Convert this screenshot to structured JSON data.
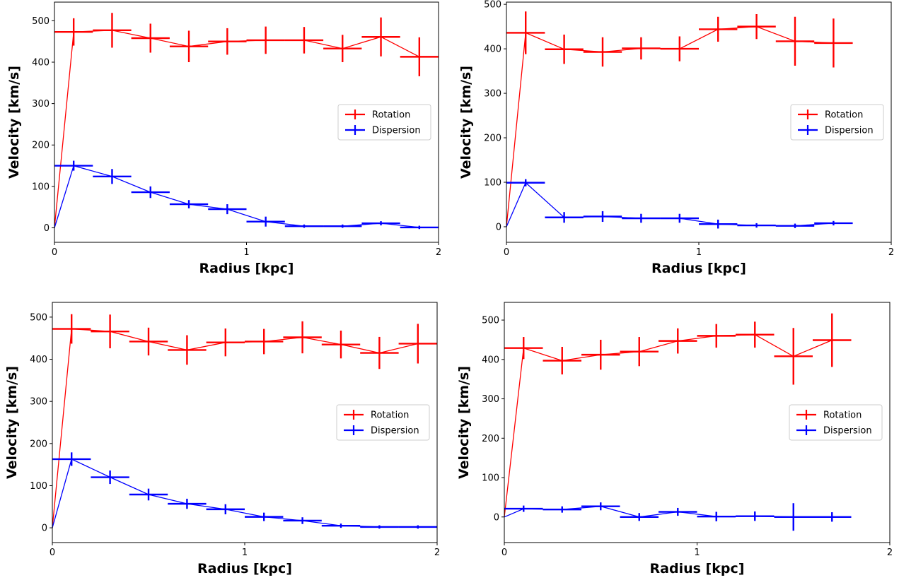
{
  "chart_data": [
    {
      "type": "line",
      "xlabel": "Radius [kpc]",
      "ylabel": "Velocity [km/s]",
      "xlim": [
        0,
        2
      ],
      "ylim": [
        -35,
        545
      ],
      "xticks": [
        0,
        1,
        2
      ],
      "yticks": [
        0,
        100,
        200,
        300,
        400,
        500
      ],
      "grid": false,
      "legend_position": "center-right",
      "series": [
        {
          "name": "Rotation",
          "color": "#ff0000",
          "x": [
            0,
            0.1,
            0.3,
            0.5,
            0.7,
            0.9,
            1.1,
            1.3,
            1.5,
            1.7,
            1.9
          ],
          "y": [
            0,
            473,
            477,
            458,
            438,
            450,
            453,
            453,
            433,
            461,
            413
          ],
          "xerr": [
            0,
            0.1,
            0.1,
            0.1,
            0.1,
            0.1,
            0.1,
            0.1,
            0.1,
            0.1,
            0.1
          ],
          "yerr": [
            0,
            33,
            42,
            35,
            38,
            32,
            33,
            32,
            33,
            47,
            47
          ]
        },
        {
          "name": "Dispersion",
          "color": "#0000ff",
          "x": [
            0,
            0.1,
            0.3,
            0.5,
            0.7,
            0.9,
            1.1,
            1.3,
            1.5,
            1.7,
            1.9
          ],
          "y": [
            0,
            150,
            124,
            86,
            57,
            45,
            15,
            4,
            4,
            11,
            1
          ],
          "xerr": [
            0,
            0.1,
            0.1,
            0.1,
            0.1,
            0.1,
            0.1,
            0.1,
            0.1,
            0.1,
            0.1
          ],
          "yerr": [
            0,
            12,
            18,
            14,
            10,
            12,
            12,
            4,
            4,
            5,
            4
          ]
        }
      ]
    },
    {
      "type": "line",
      "xlabel": "Radius [kpc]",
      "ylabel": "Velocity [km/s]",
      "xlim": [
        0,
        2
      ],
      "ylim": [
        -35,
        505
      ],
      "xticks": [
        0,
        1,
        2
      ],
      "yticks": [
        0,
        100,
        200,
        300,
        400,
        500
      ],
      "grid": false,
      "legend_position": "center-right",
      "series": [
        {
          "name": "Rotation",
          "color": "#ff0000",
          "x": [
            0,
            0.1,
            0.3,
            0.5,
            0.7,
            0.9,
            1.1,
            1.3,
            1.5,
            1.7
          ],
          "y": [
            0,
            436,
            399,
            393,
            401,
            400,
            444,
            450,
            417,
            413
          ],
          "xerr": [
            0,
            0.1,
            0.1,
            0.1,
            0.1,
            0.1,
            0.1,
            0.1,
            0.1,
            0.1
          ],
          "yerr": [
            0,
            48,
            33,
            33,
            25,
            28,
            28,
            28,
            55,
            55
          ]
        },
        {
          "name": "Dispersion",
          "color": "#0000ff",
          "x": [
            0,
            0.1,
            0.3,
            0.5,
            0.7,
            0.9,
            1.1,
            1.3,
            1.5,
            1.7
          ],
          "y": [
            0,
            99,
            21,
            23,
            19,
            19,
            6,
            3,
            2,
            8
          ],
          "xerr": [
            0,
            0.1,
            0.1,
            0.1,
            0.1,
            0.1,
            0.1,
            0.1,
            0.1,
            0.1
          ],
          "yerr": [
            0,
            8,
            12,
            12,
            10,
            10,
            10,
            5,
            5,
            5
          ]
        }
      ]
    },
    {
      "type": "line",
      "xlabel": "Radius [kpc]",
      "ylabel": "Velocity [km/s]",
      "xlim": [
        0,
        2
      ],
      "ylim": [
        -35,
        535
      ],
      "xticks": [
        0,
        1,
        2
      ],
      "yticks": [
        0,
        100,
        200,
        300,
        400,
        500
      ],
      "grid": false,
      "legend_position": "center-right",
      "series": [
        {
          "name": "Rotation",
          "color": "#ff0000",
          "x": [
            0,
            0.1,
            0.3,
            0.5,
            0.7,
            0.9,
            1.1,
            1.3,
            1.5,
            1.7,
            1.9
          ],
          "y": [
            0,
            472,
            466,
            442,
            422,
            440,
            442,
            452,
            435,
            415,
            437
          ],
          "xerr": [
            0,
            0.1,
            0.1,
            0.1,
            0.1,
            0.1,
            0.1,
            0.1,
            0.1,
            0.1,
            0.1
          ],
          "yerr": [
            0,
            35,
            40,
            33,
            35,
            33,
            30,
            38,
            33,
            38,
            47
          ]
        },
        {
          "name": "Dispersion",
          "color": "#0000ff",
          "x": [
            0,
            0.1,
            0.3,
            0.5,
            0.7,
            0.9,
            1.1,
            1.3,
            1.5,
            1.7,
            1.9
          ],
          "y": [
            0,
            163,
            120,
            79,
            57,
            44,
            26,
            17,
            5,
            2,
            2
          ],
          "xerr": [
            0,
            0.1,
            0.1,
            0.1,
            0.1,
            0.1,
            0.1,
            0.1,
            0.1,
            0.1,
            0.1
          ],
          "yerr": [
            0,
            16,
            16,
            14,
            12,
            12,
            10,
            8,
            5,
            4,
            4
          ]
        }
      ]
    },
    {
      "type": "line",
      "xlabel": "Radius [kpc]",
      "ylabel": "Velocity [km/s]",
      "xlim": [
        0,
        2
      ],
      "ylim": [
        -65,
        545
      ],
      "xticks": [
        0,
        1,
        2
      ],
      "yticks": [
        0,
        100,
        200,
        300,
        400,
        500
      ],
      "grid": false,
      "legend_position": "center-right",
      "series": [
        {
          "name": "Rotation",
          "color": "#ff0000",
          "x": [
            0,
            0.1,
            0.3,
            0.5,
            0.7,
            0.9,
            1.1,
            1.3,
            1.5,
            1.7
          ],
          "y": [
            0,
            429,
            397,
            412,
            420,
            447,
            460,
            463,
            408,
            449
          ],
          "xerr": [
            0,
            0.1,
            0.1,
            0.1,
            0.1,
            0.1,
            0.1,
            0.1,
            0.1,
            0.1
          ],
          "yerr": [
            0,
            28,
            35,
            38,
            37,
            32,
            30,
            33,
            72,
            68
          ]
        },
        {
          "name": "Dispersion",
          "color": "#0000ff",
          "x": [
            0,
            0.1,
            0.3,
            0.5,
            0.7,
            0.9,
            1.1,
            1.3,
            1.5,
            1.7
          ],
          "y": [
            0,
            21,
            19,
            27,
            0,
            13,
            1,
            2,
            0,
            0
          ],
          "xerr": [
            0,
            0.1,
            0.1,
            0.1,
            0.1,
            0.1,
            0.1,
            0.1,
            0.1,
            0.1
          ],
          "yerr": [
            0,
            8,
            8,
            10,
            10,
            10,
            12,
            12,
            35,
            12
          ]
        }
      ]
    }
  ]
}
